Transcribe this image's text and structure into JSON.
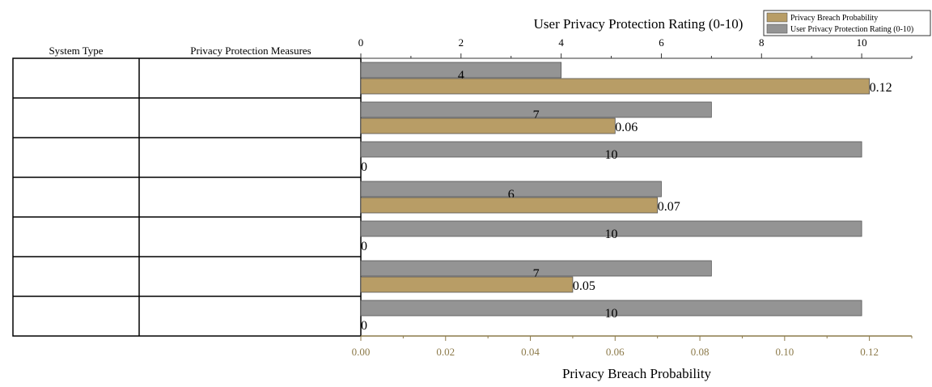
{
  "chart_data": {
    "type": "bar",
    "orientation": "horizontal",
    "table_headers": [
      "System Type",
      "Privacy Protection Measures"
    ],
    "rows": [
      "",
      "",
      "",
      "",
      "",
      "",
      ""
    ],
    "series": [
      {
        "name": "Privacy Breach Probability",
        "axis": "bottom",
        "color": "#b89d66",
        "values": [
          0.12,
          0.06,
          0,
          0.07,
          0,
          0.05,
          0
        ],
        "labels": [
          "0.12",
          "0.06",
          "0",
          "0.07",
          "0",
          "0.05",
          "0"
        ]
      },
      {
        "name": "User Privacy Protection Rating (0-10)",
        "axis": "top",
        "color": "#949494",
        "values": [
          4,
          7,
          10,
          6,
          10,
          7,
          10
        ],
        "labels": [
          "4",
          "7",
          "10",
          "6",
          "10",
          "7",
          "10"
        ]
      }
    ],
    "top_axis": {
      "title": "User Privacy Protection Rating (0-10)",
      "min": 0,
      "max": 11,
      "ticks": [
        "0",
        "2",
        "4",
        "6",
        "8",
        "10"
      ]
    },
    "bottom_axis": {
      "title": "Privacy Breach Probability",
      "min": 0,
      "max": 0.13,
      "ticks": [
        "0.00",
        "0.02",
        "0.04",
        "0.06",
        "0.08",
        "0.10",
        "0.12"
      ]
    },
    "legend_position": "top-right",
    "colors": {
      "breach": "#b89d66",
      "rating": "#949494",
      "bottom_axis": "#8c7a4a"
    }
  }
}
